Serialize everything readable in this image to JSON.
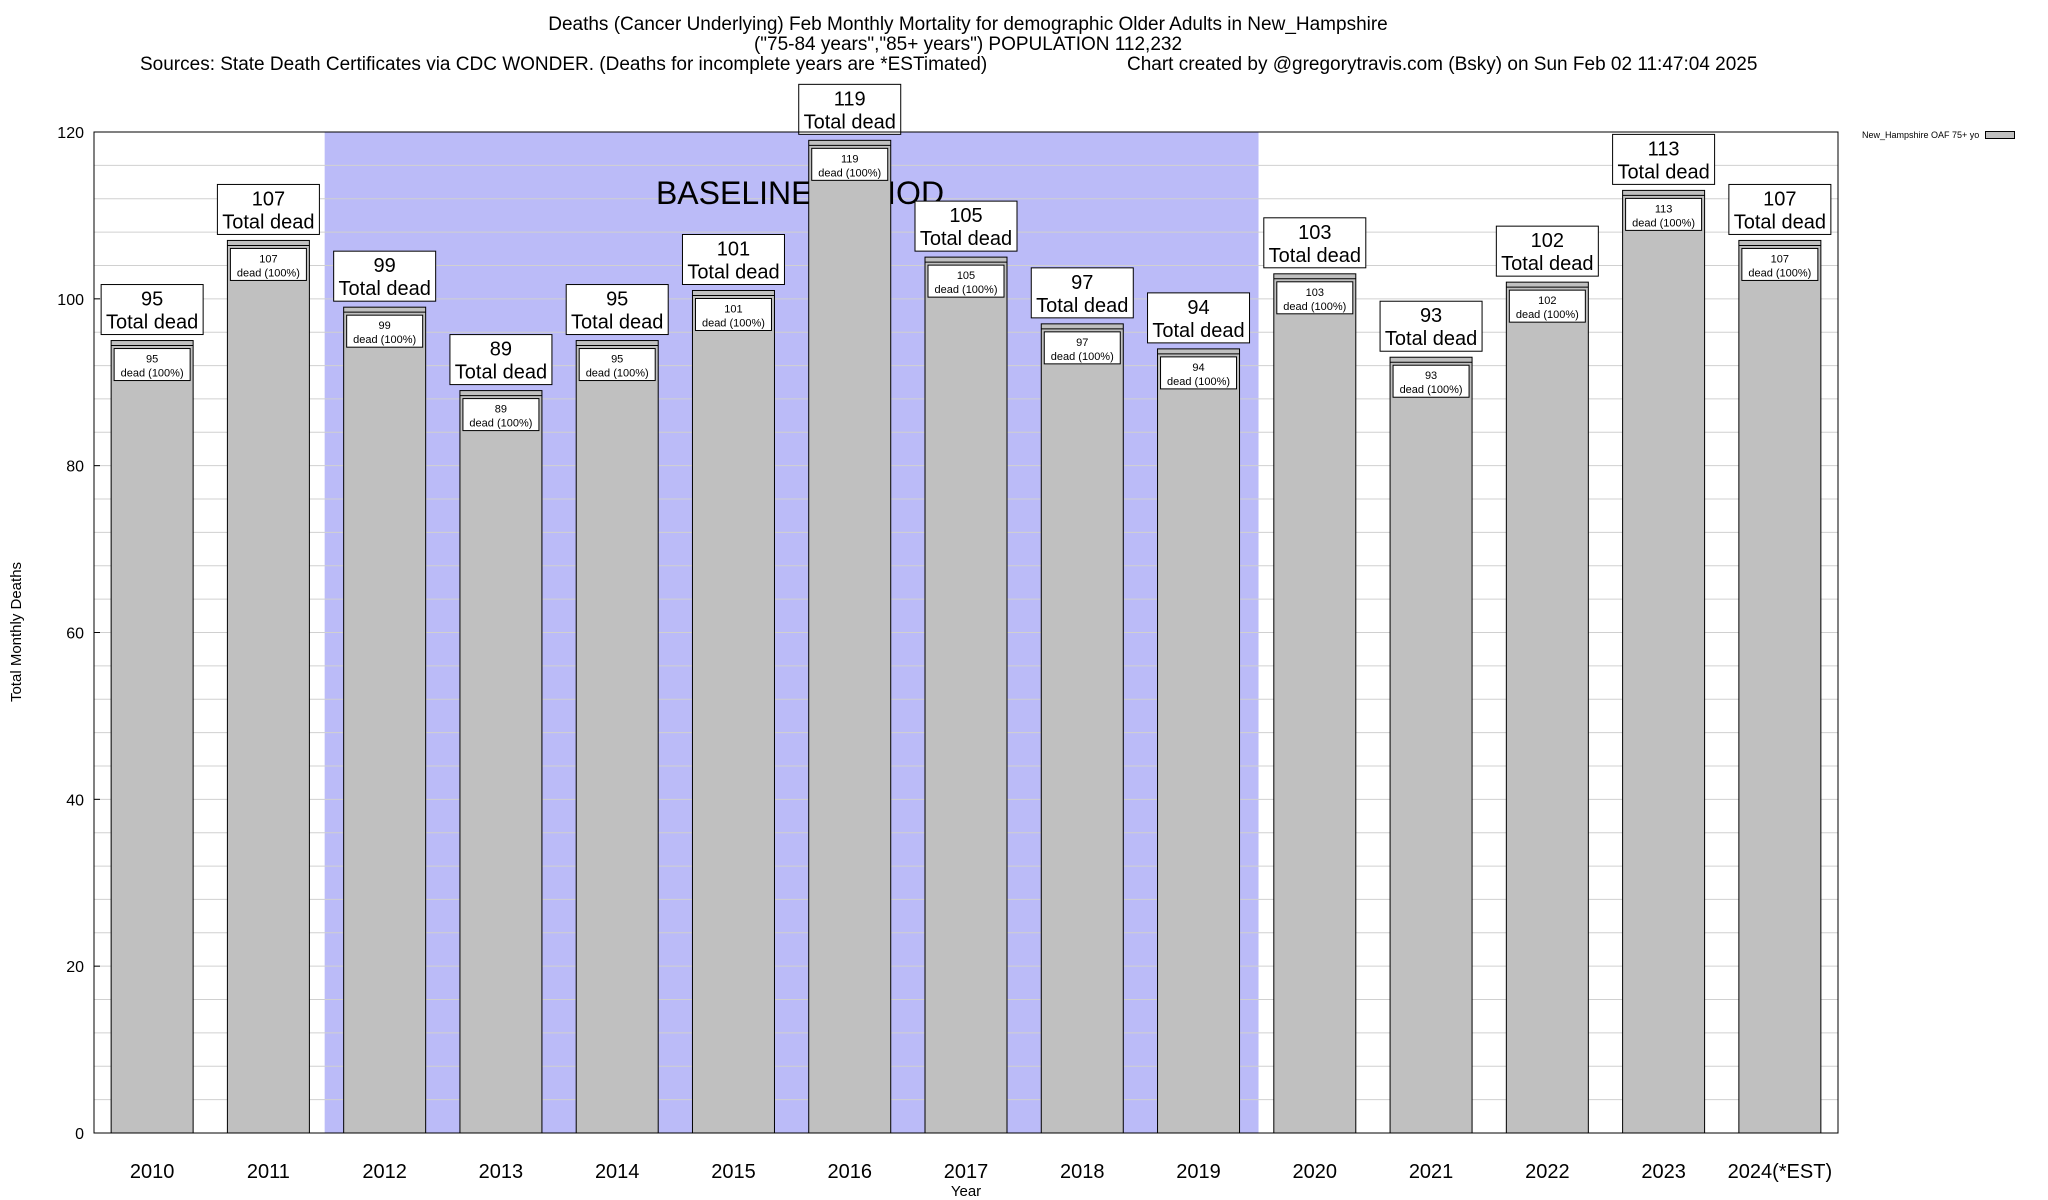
{
  "chart_data": {
    "type": "bar",
    "title": "Deaths (Cancer Underlying) Feb Monthly Mortality for demographic Older Adults in New_Hampshire",
    "subtitle": "(\"75-84 years\",\"85+ years\") POPULATION 112,232",
    "sources": "Sources: State Death Certificates via CDC WONDER. (Deaths for incomplete years are *ESTimated)",
    "credit": "Chart created by @gregorytravis.com (Bsky) on Sun Feb 02 11:47:04 2025",
    "xlabel": "Year",
    "ylabel": "Total Monthly Deaths",
    "ylim": [
      0,
      120
    ],
    "yticks": [
      0,
      20,
      40,
      60,
      80,
      100,
      120
    ],
    "grid": true,
    "categories": [
      "2010",
      "2011",
      "2012",
      "2013",
      "2014",
      "2015",
      "2016",
      "2017",
      "2018",
      "2019",
      "2020",
      "2021",
      "2022",
      "2023",
      "2024(*EST)"
    ],
    "series": [
      {
        "name": "New_Hampshire OAF 75+ yo",
        "values": [
          95,
          107,
          99,
          89,
          95,
          101,
          119,
          105,
          97,
          94,
          103,
          93,
          102,
          113,
          107
        ]
      }
    ],
    "total_label": "Total dead",
    "inner_label": "dead (100%)",
    "baseline": {
      "label": "BASELINE PERIOD",
      "from": "2012",
      "to": "2019",
      "color": "#bbbbf8"
    },
    "bar_color": "#c0c0c0",
    "legend_position": "top-right"
  }
}
